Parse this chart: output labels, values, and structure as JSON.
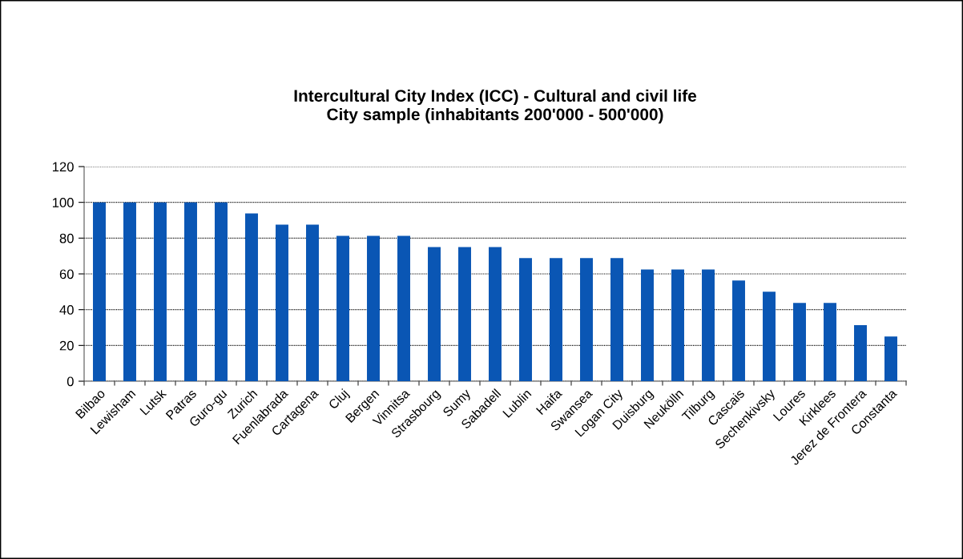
{
  "chart_data": {
    "type": "bar",
    "title": "Intercultural City Index (ICC) - Cultural and civil life\nCity sample (inhabitants 200'000 - 500'000)",
    "categories": [
      "Bilbao",
      "Lewisham",
      "Lutsk",
      "Patras",
      "Guro-gu",
      "Zurich",
      "Fuenlabrada",
      "Cartagena",
      "Cluj",
      "Bergen",
      "Vinnitsa",
      "Strasbourg",
      "Sumy",
      "Sabadell",
      "Lublin",
      "Haifa",
      "Swansea",
      "Logan City",
      "Duisburg",
      "Neukölln",
      "Tilburg",
      "Cascais",
      "Sechenkivsky",
      "Loures",
      "Kirklees",
      "Jerez de Frontera",
      "Constanta"
    ],
    "values": [
      100,
      100,
      100,
      100,
      100,
      93.8,
      87.5,
      87.5,
      81.3,
      81.3,
      81.3,
      75,
      75,
      75,
      68.8,
      68.8,
      68.8,
      68.8,
      62.5,
      62.5,
      62.5,
      56.3,
      50,
      43.8,
      43.8,
      31.3,
      25
    ],
    "color": "#0a56b4",
    "ylim": [
      0,
      120
    ],
    "yticks": [
      0,
      20,
      40,
      60,
      80,
      100,
      120
    ],
    "grid": "y",
    "legend": false
  }
}
